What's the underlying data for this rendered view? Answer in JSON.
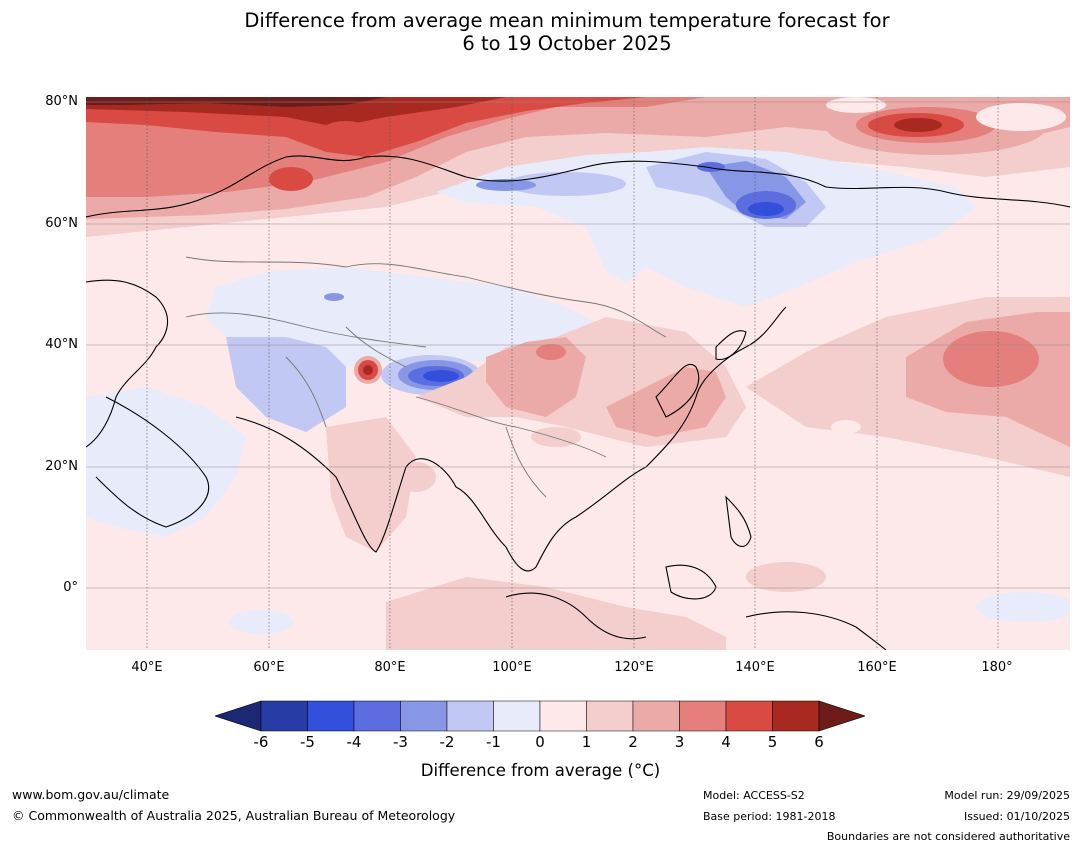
{
  "title": {
    "line1": "Difference from average mean minimum temperature forecast for",
    "line2": "6 to 19 October 2025"
  },
  "map": {
    "lat_labels": [
      "80°N",
      "60°N",
      "40°N",
      "20°N",
      "0°"
    ],
    "lon_labels": [
      "40°E",
      "60°E",
      "80°E",
      "100°E",
      "120°E",
      "140°E",
      "160°E",
      "180°"
    ]
  },
  "colorbar": {
    "ticks": [
      "-6",
      "-5",
      "-4",
      "-3",
      "-2",
      "-1",
      "0",
      "1",
      "2",
      "3",
      "4",
      "5",
      "6"
    ],
    "colors": [
      "#1c2873",
      "#283ca8",
      "#3250dc",
      "#5c6edf",
      "#8797e6",
      "#c1c8f3",
      "#e8ebfa",
      "#fde9e9",
      "#f4cdcd",
      "#ebaaa7",
      "#e47f7b",
      "#d94a43",
      "#a72920",
      "#6e1c19"
    ],
    "label": "Difference from average (°C)"
  },
  "footer": {
    "website": "www.bom.gov.au/climate",
    "copyright": "© Commonwealth of Australia 2025, Australian Bureau of Meteorology",
    "model": "Model: ACCESS-S2",
    "base_period": "Base period: 1981-2018",
    "model_run": "Model run: 29/09/2025",
    "issued": "Issued: 01/10/2025",
    "disclaimer": "Boundaries are not considered authoritative"
  }
}
